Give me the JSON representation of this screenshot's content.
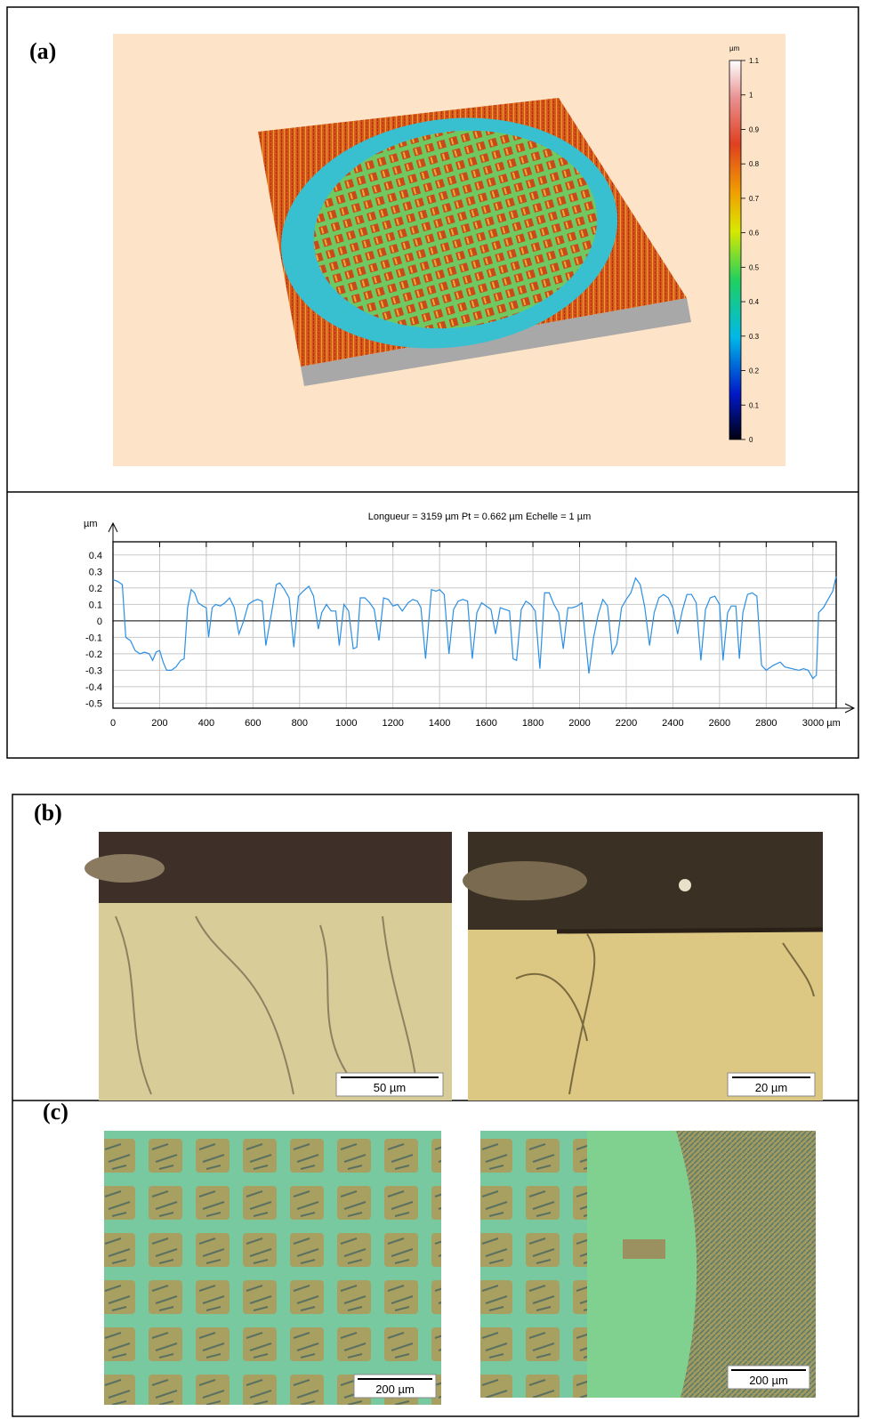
{
  "panels": [
    {
      "label": "(a)"
    },
    {
      "label": "(b)",
      "scale_bars": [
        "50 µm",
        "20 µm"
      ]
    },
    {
      "label": "(c)",
      "scale_bars": [
        "200 µm",
        "200 µm"
      ]
    }
  ],
  "colorbar": {
    "unit": "µm",
    "lim": [
      0,
      1.1
    ],
    "ticks": [
      0,
      0.1,
      0.2,
      0.3,
      0.4,
      0.5,
      0.6,
      0.7,
      0.8,
      0.9,
      1,
      1.1
    ]
  },
  "chart_data": {
    "type": "line",
    "title": "Longueur = 3159 µm  Pt = 0.662 µm  Echelle = 1 µm",
    "y_label": "µm",
    "color": "#2b8fe3",
    "grid": true,
    "xlim": [
      0,
      3100
    ],
    "ylim": [
      -0.53,
      0.48
    ],
    "xticks": [
      0,
      200,
      400,
      600,
      800,
      1000,
      1200,
      1400,
      1600,
      1800,
      2000,
      2200,
      2400,
      2600,
      2800,
      {
        "value": 3000,
        "label": "3000 µm"
      }
    ],
    "yticks": [
      0.4,
      0.3,
      0.2,
      0.1,
      0,
      -0.1,
      -0.2,
      -0.3,
      -0.4,
      -0.5
    ],
    "x": [
      0,
      20,
      40,
      55,
      75,
      95,
      115,
      135,
      155,
      170,
      185,
      200,
      215,
      230,
      250,
      270,
      290,
      305,
      320,
      335,
      350,
      365,
      385,
      400,
      410,
      425,
      440,
      460,
      480,
      500,
      520,
      540,
      560,
      580,
      600,
      620,
      640,
      655,
      680,
      700,
      715,
      735,
      755,
      775,
      795,
      815,
      840,
      860,
      880,
      895,
      915,
      935,
      955,
      970,
      990,
      1010,
      1030,
      1045,
      1060,
      1080,
      1100,
      1120,
      1140,
      1160,
      1180,
      1200,
      1220,
      1240,
      1265,
      1285,
      1305,
      1320,
      1340,
      1365,
      1385,
      1400,
      1420,
      1440,
      1460,
      1480,
      1500,
      1520,
      1540,
      1560,
      1580,
      1600,
      1620,
      1640,
      1660,
      1680,
      1700,
      1715,
      1730,
      1750,
      1770,
      1790,
      1810,
      1830,
      1850,
      1870,
      1890,
      1910,
      1930,
      1950,
      1970,
      1990,
      2010,
      2040,
      2060,
      2080,
      2100,
      2120,
      2140,
      2160,
      2180,
      2200,
      2220,
      2240,
      2260,
      2280,
      2300,
      2320,
      2340,
      2360,
      2380,
      2400,
      2420,
      2440,
      2460,
      2480,
      2500,
      2520,
      2540,
      2560,
      2580,
      2600,
      2615,
      2635,
      2650,
      2670,
      2685,
      2700,
      2720,
      2740,
      2760,
      2780,
      2800,
      2830,
      2860,
      2880,
      2910,
      2940,
      2960,
      2980,
      3000,
      3015,
      3025,
      3045,
      3065,
      3085,
      3100
    ],
    "values": [
      0.25,
      0.24,
      0.22,
      -0.1,
      -0.12,
      -0.18,
      -0.2,
      -0.19,
      -0.2,
      -0.24,
      -0.19,
      -0.18,
      -0.25,
      -0.3,
      -0.3,
      -0.28,
      -0.24,
      -0.23,
      0.08,
      0.19,
      0.17,
      0.11,
      0.09,
      0.08,
      -0.1,
      0.08,
      0.1,
      0.09,
      0.11,
      0.14,
      0.08,
      -0.08,
      0.0,
      0.1,
      0.12,
      0.13,
      0.12,
      -0.15,
      0.05,
      0.22,
      0.23,
      0.19,
      0.14,
      -0.16,
      0.15,
      0.18,
      0.21,
      0.15,
      -0.05,
      0.05,
      0.1,
      0.06,
      0.06,
      -0.15,
      0.1,
      0.06,
      -0.17,
      -0.16,
      0.14,
      0.14,
      0.11,
      0.07,
      -0.12,
      0.14,
      0.13,
      0.09,
      0.1,
      0.06,
      0.11,
      0.13,
      0.12,
      0.08,
      -0.23,
      0.19,
      0.18,
      0.19,
      0.16,
      -0.2,
      0.07,
      0.12,
      0.13,
      0.12,
      -0.23,
      0.05,
      0.11,
      0.09,
      0.07,
      -0.08,
      0.08,
      0.07,
      0.06,
      -0.23,
      -0.24,
      0.07,
      0.12,
      0.1,
      0.06,
      -0.29,
      0.17,
      0.17,
      0.1,
      0.05,
      -0.17,
      0.08,
      0.08,
      0.09,
      0.11,
      -0.32,
      -0.1,
      0.04,
      0.13,
      0.09,
      -0.2,
      -0.14,
      0.08,
      0.13,
      0.17,
      0.26,
      0.22,
      0.08,
      -0.15,
      0.05,
      0.14,
      0.16,
      0.14,
      0.08,
      -0.08,
      0.06,
      0.16,
      0.16,
      0.11,
      -0.24,
      0.07,
      0.14,
      0.15,
      0.1,
      -0.24,
      0.05,
      0.09,
      0.09,
      -0.23,
      0.05,
      0.16,
      0.17,
      0.15,
      -0.27,
      -0.3,
      -0.27,
      -0.25,
      -0.28,
      -0.29,
      -0.3,
      -0.29,
      -0.3,
      -0.35,
      -0.33,
      0.05,
      0.08,
      0.13,
      0.18,
      0.27
    ]
  }
}
